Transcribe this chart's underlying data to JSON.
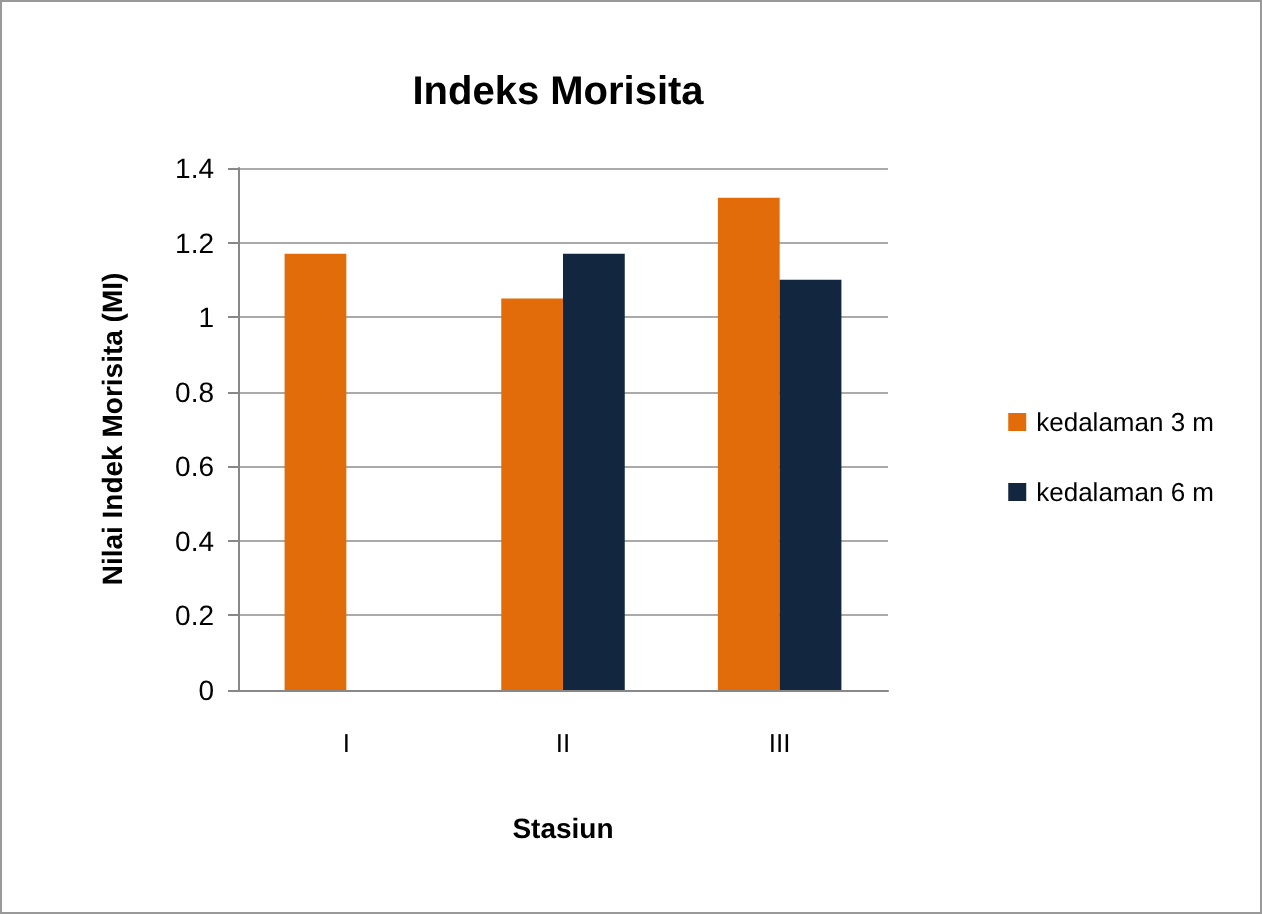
{
  "chart_data": {
    "type": "bar",
    "title": "Indeks Morisita",
    "xlabel": "Stasiun",
    "ylabel": "Nilai Indek Morisita (MI)",
    "categories": [
      "I",
      "II",
      "III"
    ],
    "series": [
      {
        "name": "kedalaman 3 m",
        "color": "#e36c0a",
        "values": [
          1.17,
          1.05,
          1.32
        ]
      },
      {
        "name": "kedalaman 6 m",
        "color": "#12263f",
        "values": [
          null,
          1.17,
          1.1
        ]
      }
    ],
    "ylim": [
      0,
      1.4
    ],
    "yticks": [
      0,
      0.2,
      0.4,
      0.6,
      0.8,
      1,
      1.2,
      1.4
    ],
    "grid": "y",
    "legend": "right"
  }
}
